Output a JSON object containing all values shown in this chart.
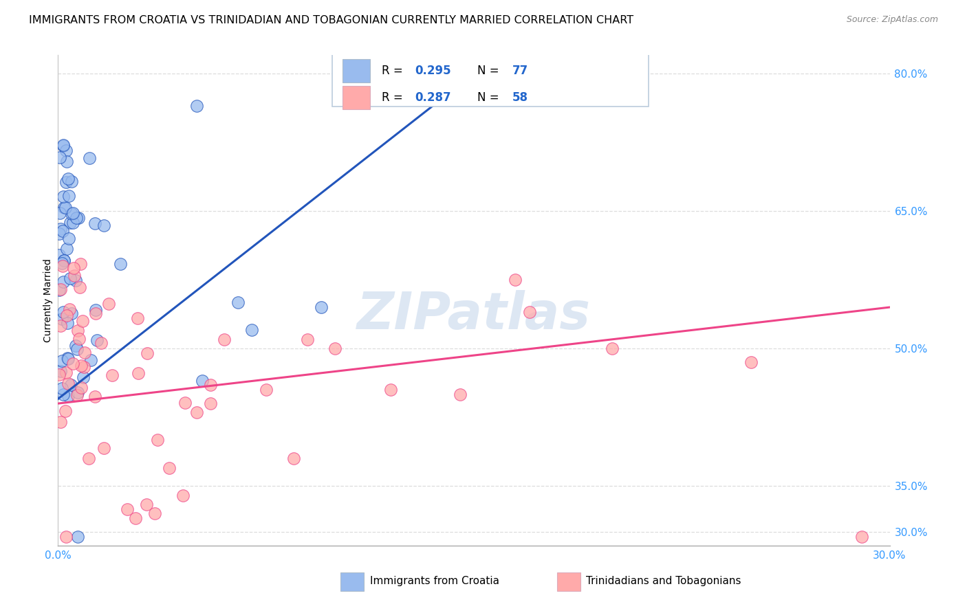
{
  "title": "IMMIGRANTS FROM CROATIA VS TRINIDADIAN AND TOBAGONIAN CURRENTLY MARRIED CORRELATION CHART",
  "source": "Source: ZipAtlas.com",
  "ylabel_label": "Currently Married",
  "legend_label1": "Immigrants from Croatia",
  "legend_label2": "Trinidadians and Tobagonians",
  "R1": "0.295",
  "N1": "77",
  "R2": "0.287",
  "N2": "58",
  "color_blue": "#99BBEE",
  "color_pink": "#FFAAAA",
  "color_blue_line": "#2255BB",
  "color_pink_line": "#EE4488",
  "color_text_blue": "#3399FF",
  "color_rn_text": "#2266CC",
  "watermark": "ZIPatlas",
  "title_fontsize": 11.5,
  "source_fontsize": 9,
  "xmin": 0.0,
  "xmax": 30.0,
  "ymin": 28.5,
  "ymax": 82.0,
  "gridline_color": "#DDDDDD",
  "ytick_positions": [
    30.0,
    35.0,
    50.0,
    65.0,
    80.0
  ],
  "ytick_labels": [
    "30.0%",
    "35.0%",
    "50.0%",
    "65.0%",
    "80.0%"
  ],
  "xtick_positions": [
    0.0,
    5.0,
    10.0,
    15.0,
    20.0,
    25.0,
    30.0
  ],
  "xtick_labels": [
    "0.0%",
    "",
    "",
    "",
    "",
    "",
    "30.0%"
  ],
  "blue_trend_x0": 0.0,
  "blue_trend_y0": 44.5,
  "blue_trend_x1": 14.8,
  "blue_trend_y1": 79.5,
  "pink_trend_x0": 0.0,
  "pink_trend_y0": 44.0,
  "pink_trend_x1": 30.0,
  "pink_trend_y1": 54.5
}
